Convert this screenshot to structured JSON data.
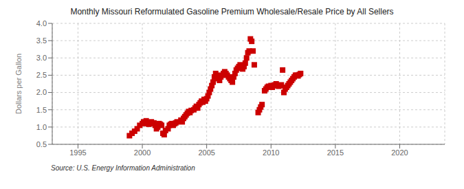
{
  "chart_data": {
    "type": "scatter",
    "title": "Monthly Missouri Reformulated Gasoline Premium Wholesale/Resale Price by All Sellers",
    "ylabel": "Dollars per Gallon",
    "annotations": [
      "Source: U.S. Energy Information Administration"
    ],
    "color": "#cc0000",
    "marker": "square",
    "grid": true,
    "xlim": [
      1993.0,
      2023.5
    ],
    "ylim": [
      0.5,
      4.0
    ],
    "xticks": [
      1995,
      2000,
      2005,
      2010,
      2015,
      2020
    ],
    "yticks": [
      0.5,
      {
        "value": 1.0,
        "label": "1.0"
      },
      1.5,
      {
        "value": 2.0,
        "label": "2.0"
      },
      2.5,
      {
        "value": 3.0,
        "label": "3.0"
      },
      3.5,
      {
        "value": 4.0,
        "label": "4.0"
      }
    ],
    "x": [
      1999.0,
      1999.2,
      1999.4,
      1999.6,
      1999.8,
      2000.0,
      2000.1,
      2000.2,
      2000.3,
      2000.4,
      2000.5,
      2000.6,
      2000.7,
      2000.8,
      2000.9,
      2001.0,
      2001.1,
      2001.2,
      2001.3,
      2001.4,
      2001.5,
      2001.6,
      2001.7,
      2001.8,
      2002.0,
      2002.1,
      2002.2,
      2002.3,
      2002.4,
      2002.5,
      2002.6,
      2002.7,
      2003.0,
      2003.1,
      2003.2,
      2003.3,
      2003.4,
      2003.5,
      2003.6,
      2003.7,
      2003.8,
      2004.0,
      2004.1,
      2004.2,
      2004.3,
      2004.4,
      2004.5,
      2004.6,
      2004.7,
      2004.8,
      2004.9,
      2005.0,
      2005.1,
      2005.2,
      2005.3,
      2005.4,
      2005.5,
      2005.6,
      2005.7,
      2005.8,
      2005.9,
      2006.0,
      2006.1,
      2006.2,
      2006.3,
      2006.4,
      2006.5,
      2006.6,
      2006.7,
      2006.8,
      2006.9,
      2007.0,
      2007.1,
      2007.2,
      2007.3,
      2007.4,
      2007.5,
      2007.6,
      2007.7,
      2007.8,
      2007.9,
      2008.0,
      2008.1,
      2008.2,
      2008.3,
      2008.4,
      2008.5,
      2008.6,
      2008.7,
      2009.0,
      2009.1,
      2009.2,
      2009.3,
      2009.5,
      2009.6,
      2009.7,
      2009.8,
      2010.0,
      2010.1,
      2010.2,
      2010.3,
      2010.4,
      2010.5,
      2010.6,
      2010.7,
      2010.8,
      2010.9,
      2011.0,
      2011.1,
      2011.2,
      2011.3,
      2011.4,
      2011.5,
      2011.6,
      2011.7,
      2011.8,
      2011.9,
      2012.0,
      2012.1,
      2012.2,
      2012.3
    ],
    "values": [
      0.75,
      0.82,
      0.88,
      0.95,
      1.05,
      1.1,
      1.15,
      1.12,
      1.18,
      1.1,
      1.08,
      1.12,
      1.15,
      1.1,
      1.12,
      1.05,
      0.95,
      1.0,
      1.1,
      1.08,
      1.05,
      0.82,
      0.78,
      0.9,
      0.95,
      1.05,
      1.08,
      1.1,
      1.05,
      1.1,
      1.12,
      1.15,
      1.2,
      1.15,
      1.25,
      1.3,
      1.35,
      1.4,
      1.45,
      1.42,
      1.48,
      1.5,
      1.55,
      1.6,
      1.55,
      1.65,
      1.7,
      1.75,
      1.72,
      1.8,
      1.75,
      1.82,
      1.9,
      2.0,
      2.1,
      2.2,
      2.3,
      2.45,
      2.55,
      2.5,
      2.4,
      2.35,
      2.45,
      2.5,
      2.55,
      2.6,
      2.55,
      2.5,
      2.45,
      2.4,
      2.35,
      2.3,
      2.45,
      2.55,
      2.65,
      2.7,
      2.75,
      2.8,
      2.72,
      2.68,
      2.75,
      2.85,
      3.0,
      3.15,
      3.2,
      3.55,
      3.48,
      3.2,
      2.8,
      1.42,
      1.5,
      1.58,
      1.65,
      2.05,
      2.1,
      2.15,
      2.18,
      2.2,
      2.15,
      2.2,
      2.22,
      2.25,
      2.2,
      2.18,
      2.2,
      2.22,
      2.65,
      2.0,
      2.1,
      2.15,
      2.2,
      2.25,
      2.3,
      2.35,
      2.4,
      2.45,
      2.5,
      2.5,
      2.48,
      2.52,
      2.55
    ]
  }
}
